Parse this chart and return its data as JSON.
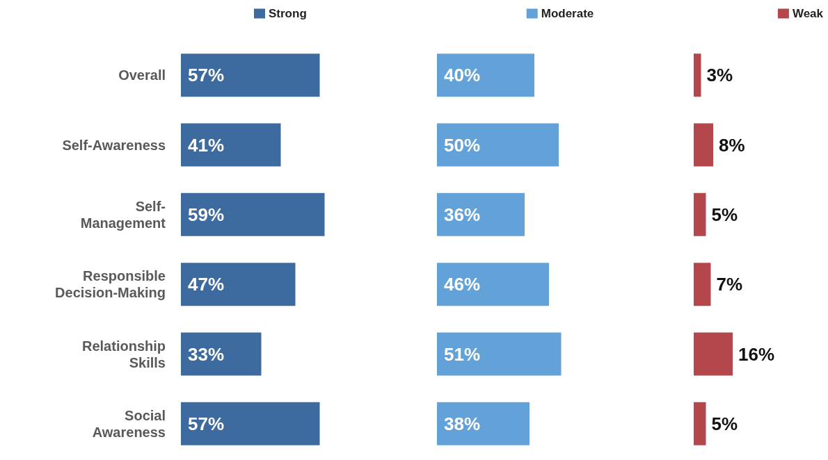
{
  "chart_data": [
    {
      "type": "bar",
      "orientation": "horizontal",
      "categories": [
        "Overall",
        "Self-Awareness",
        "Self-\nManagement",
        "Responsible\nDecision-Making",
        "Relationship\nSkills",
        "Social\nAwareness"
      ],
      "series": [
        {
          "name": "Strong",
          "color": "#3e6b9f",
          "values": [
            57,
            41,
            59,
            47,
            33,
            57
          ],
          "value_labels": [
            "57%",
            "41%",
            "59%",
            "47%",
            "33%",
            "57%"
          ]
        }
      ],
      "legend": "top",
      "tick_labels": "y"
    },
    {
      "type": "bar",
      "orientation": "horizontal",
      "categories": [
        null,
        null,
        null,
        null,
        null,
        null
      ],
      "series": [
        {
          "name": "Moderate",
          "color": "#63a2d8",
          "values": [
            40,
            50,
            36,
            46,
            51,
            38
          ],
          "value_labels": [
            "40%",
            "50%",
            "36%",
            "46%",
            "51%",
            "38%"
          ]
        }
      ],
      "legend": "top",
      "tick_labels": false
    },
    {
      "type": "bar",
      "orientation": "horizontal",
      "categories": [
        null,
        null,
        null,
        null,
        null,
        null
      ],
      "series": [
        {
          "name": "Weak",
          "color": "#b4474c",
          "values": [
            3,
            8,
            5,
            7,
            16,
            5
          ],
          "value_labels": [
            "3%",
            "8%",
            "5%",
            "7%",
            "16%",
            "5%"
          ]
        }
      ],
      "legend": "top right",
      "tick_labels": false
    }
  ]
}
